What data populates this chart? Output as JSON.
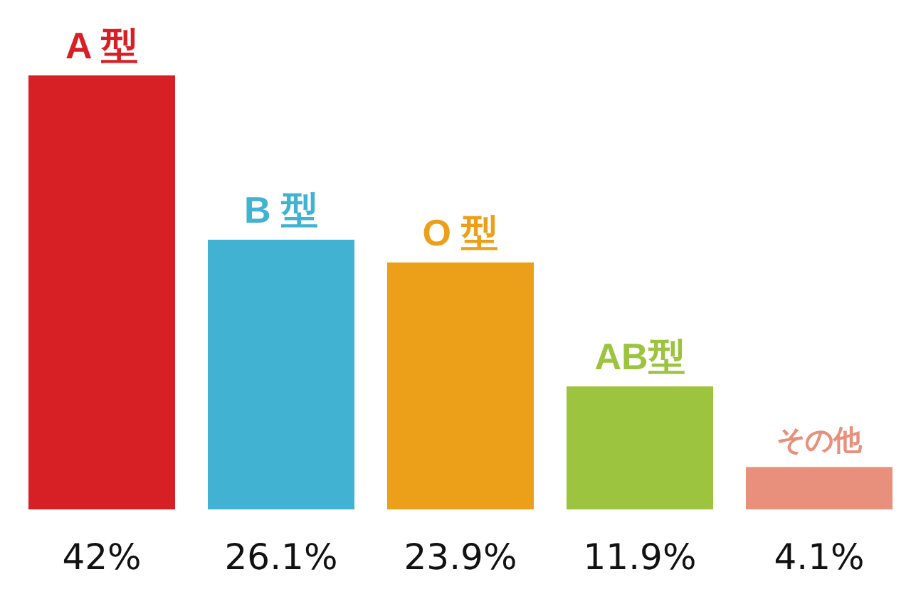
{
  "chart_data": {
    "type": "bar",
    "categories": [
      "A 型",
      "B 型",
      "O 型",
      "AB型",
      "その他"
    ],
    "values": [
      42,
      26.1,
      23.9,
      11.9,
      4.1
    ],
    "colors": [
      "#d71f26",
      "#41b2d2",
      "#eca01a",
      "#9cc43f",
      "#e8907b"
    ],
    "value_labels": [
      "42%",
      "26.1%",
      "23.9%",
      "11.9%",
      "4.1%"
    ]
  }
}
